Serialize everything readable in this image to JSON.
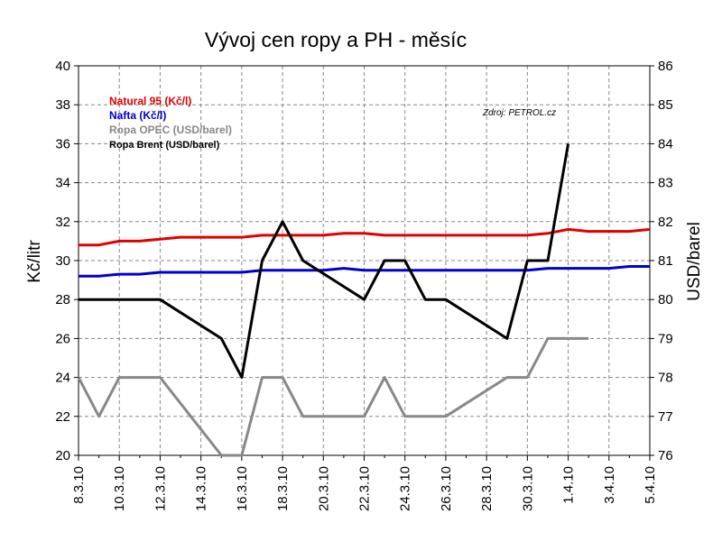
{
  "chart_data": {
    "type": "line",
    "title": "Vývoj cen ropy a PH - měsíc",
    "source": "Zdroj: PETROL.cz",
    "ylabel": "Kč/litr",
    "y2label": "USD/barel",
    "ylim": [
      20,
      40
    ],
    "y2lim": [
      76,
      86
    ],
    "yticks": [
      "20",
      "22",
      "24",
      "26",
      "28",
      "30",
      "32",
      "34",
      "36",
      "38",
      "40"
    ],
    "y2ticks": [
      "76",
      "77",
      "78",
      "79",
      "80",
      "81",
      "82",
      "83",
      "84",
      "85",
      "86"
    ],
    "x": [
      "8.3.10",
      "9.3.10",
      "10.3.10",
      "11.3.10",
      "12.3.10",
      "13.3.10",
      "14.3.10",
      "15.3.10",
      "16.3.10",
      "17.3.10",
      "18.3.10",
      "19.3.10",
      "20.3.10",
      "21.3.10",
      "22.3.10",
      "23.3.10",
      "24.3.10",
      "25.3.10",
      "26.3.10",
      "27.3.10",
      "28.3.10",
      "29.3.10",
      "30.3.10",
      "31.3.10",
      "1.4.10",
      "2.4.10",
      "3.4.10",
      "4.4.10",
      "5.4.10"
    ],
    "xticks": [
      "8.3.10",
      "10.3.10",
      "12.3.10",
      "14.3.10",
      "16.3.10",
      "18.3.10",
      "20.3.10",
      "22.3.10",
      "24.3.10",
      "26.3.10",
      "28.3.10",
      "30.3.10",
      "1.4.10",
      "3.4.10",
      "5.4.10"
    ],
    "grid": true,
    "legend_position": "top-left",
    "series": [
      {
        "name": "Natural 95 (Kč/l)",
        "axis": "left",
        "color": "#e00000",
        "values": [
          30.8,
          30.8,
          31.0,
          31.0,
          31.1,
          31.2,
          31.2,
          31.2,
          31.2,
          31.3,
          31.3,
          31.3,
          31.3,
          31.4,
          31.4,
          31.3,
          31.3,
          31.3,
          31.3,
          31.3,
          31.3,
          31.3,
          31.3,
          31.4,
          31.6,
          31.5,
          31.5,
          31.5,
          31.6
        ]
      },
      {
        "name": "Nafta (Kč/l)",
        "axis": "left",
        "color": "#0000cc",
        "values": [
          29.2,
          29.2,
          29.3,
          29.3,
          29.4,
          29.4,
          29.4,
          29.4,
          29.4,
          29.5,
          29.5,
          29.5,
          29.5,
          29.6,
          29.5,
          29.5,
          29.5,
          29.5,
          29.5,
          29.5,
          29.5,
          29.5,
          29.5,
          29.6,
          29.6,
          29.6,
          29.6,
          29.7,
          29.7
        ]
      },
      {
        "name": "Ropa OPEC (USD/barel)",
        "axis": "right",
        "color": "#888888",
        "values": [
          78,
          77,
          78,
          78,
          78,
          null,
          null,
          76,
          76,
          78,
          78,
          77,
          77,
          77,
          77,
          78,
          77,
          77,
          77,
          null,
          null,
          78,
          78,
          79,
          79,
          79,
          null,
          null,
          null
        ]
      },
      {
        "name": "Ropa Brent (USD/barel)",
        "axis": "right",
        "color": "#000000",
        "values": [
          80,
          80,
          80,
          80,
          80,
          null,
          null,
          79,
          78,
          81,
          82,
          81,
          null,
          null,
          80,
          81,
          81,
          80,
          80,
          null,
          null,
          79,
          81,
          81,
          84,
          null,
          null,
          null,
          null
        ]
      }
    ]
  }
}
